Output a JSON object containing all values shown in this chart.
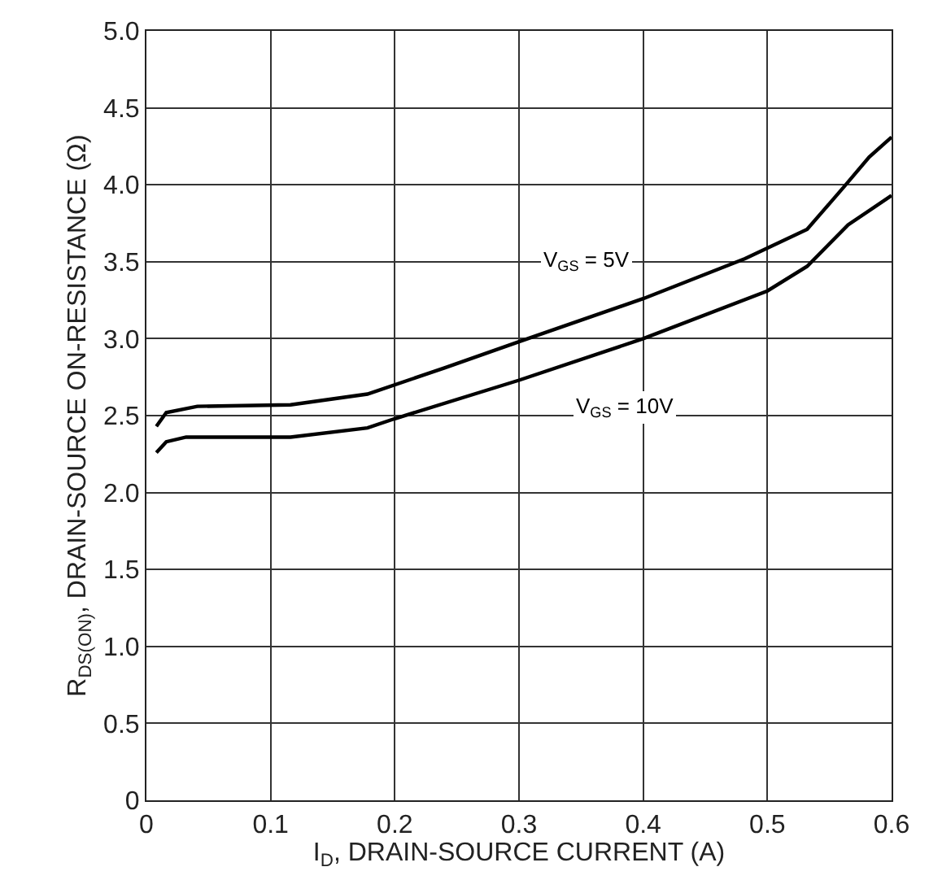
{
  "chart_data": {
    "type": "line",
    "xlabel": "I$_{D}$, DRAIN-SOURCE CURRENT (A)",
    "ylabel": "R$_{DS(ON)}$, DRAIN-SOURCE ON-RESISTANCE (Ω)",
    "xlim": [
      0,
      0.6
    ],
    "xticks": [
      0,
      0.1,
      0.2,
      0.3,
      0.4,
      0.5,
      0.6
    ],
    "ylim": [
      0,
      5
    ],
    "yticks": [
      0,
      0.5,
      {
        "value": 1,
        "label": "1.0"
      },
      1.5,
      {
        "value": 2,
        "label": "2.0"
      },
      2.5,
      {
        "value": 3,
        "label": "3.0"
      },
      3.5,
      {
        "value": 4,
        "label": "4.0"
      },
      4.5,
      {
        "value": 5,
        "label": "5.0"
      }
    ],
    "grid": true,
    "legend": false,
    "marker": "none",
    "line_style": "solid",
    "series": [
      {
        "name": "V$_{GS}$ = 5V",
        "color": "#000000",
        "x": [
          0.008,
          0.016,
          0.041,
          0.116,
          0.178,
          0.24,
          0.3,
          0.4,
          0.482,
          0.532,
          0.562,
          0.582,
          0.6
        ],
        "values": [
          2.43,
          2.52,
          2.56,
          2.57,
          2.64,
          2.81,
          2.98,
          3.26,
          3.52,
          3.71,
          3.99,
          4.18,
          4.31
        ]
      },
      {
        "name": "V$_{GS}$ = 10V",
        "color": "#000000",
        "x": [
          0.008,
          0.016,
          0.032,
          0.116,
          0.178,
          0.2,
          0.3,
          0.4,
          0.5,
          0.532,
          0.565,
          0.6
        ],
        "values": [
          2.26,
          2.33,
          2.36,
          2.36,
          2.42,
          2.48,
          2.73,
          3.0,
          3.31,
          3.47,
          3.74,
          3.93
        ]
      }
    ]
  }
}
